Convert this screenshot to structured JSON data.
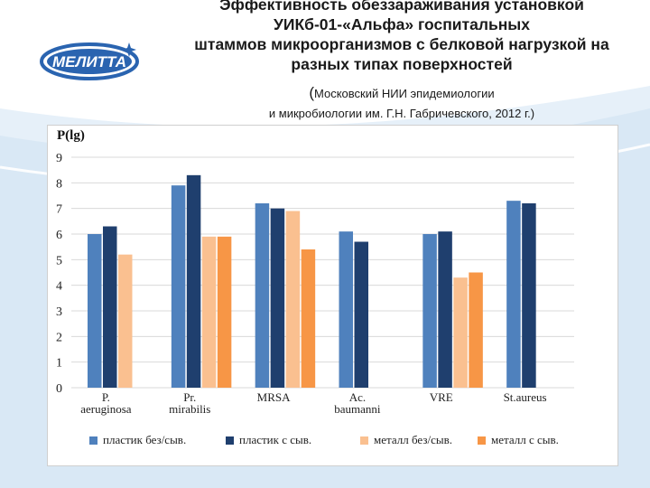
{
  "header": {
    "title_lines": [
      "Эффективность обеззараживания установкой",
      "УИКб-01-«Альфа» госпитальных",
      "штаммов микроорганизмов с белковой нагрузкой на",
      "разных типах поверхностей"
    ],
    "source_line1_paren": "(",
    "source_line1": "Московский НИИ эпидемиологии",
    "source_line2": "и микробиологии им. Г.Н. Габричевского, 2012 г.)"
  },
  "logo": {
    "text": "МЕЛИТТА",
    "icon": "star-sparkle-icon"
  },
  "colors": {
    "series": [
      "#4f81bd",
      "#1f3f6e",
      "#fac090",
      "#f79646"
    ],
    "accent": "#2a64b0",
    "wave": "#d6e6f4"
  },
  "chart_data": {
    "type": "bar",
    "ylabel": "P(lg)",
    "ylim": [
      0,
      9
    ],
    "yticks": [
      "0",
      "1",
      "2",
      "3",
      "4",
      "5",
      "6",
      "7",
      "8",
      "9"
    ],
    "grid": true,
    "legend_position": "bottom",
    "categories": [
      [
        "P.",
        "aeruginosa"
      ],
      [
        "Pr.",
        "mirabilis"
      ],
      [
        "MRSA"
      ],
      [
        "Ac.",
        "baumanni"
      ],
      [
        "VRE"
      ],
      [
        "St.aureus"
      ]
    ],
    "series": [
      {
        "name": "пластик без/сыв.",
        "values": [
          6.0,
          7.9,
          7.2,
          6.1,
          6.0,
          7.3
        ]
      },
      {
        "name": "пластик с сыв.",
        "values": [
          6.3,
          8.3,
          7.0,
          5.7,
          6.1,
          7.2
        ]
      },
      {
        "name": "металл без/сыв.",
        "values": [
          5.2,
          5.9,
          6.9,
          null,
          4.3,
          null
        ]
      },
      {
        "name": "металл с сыв.",
        "values": [
          null,
          5.9,
          5.4,
          null,
          4.5,
          null
        ]
      }
    ]
  }
}
